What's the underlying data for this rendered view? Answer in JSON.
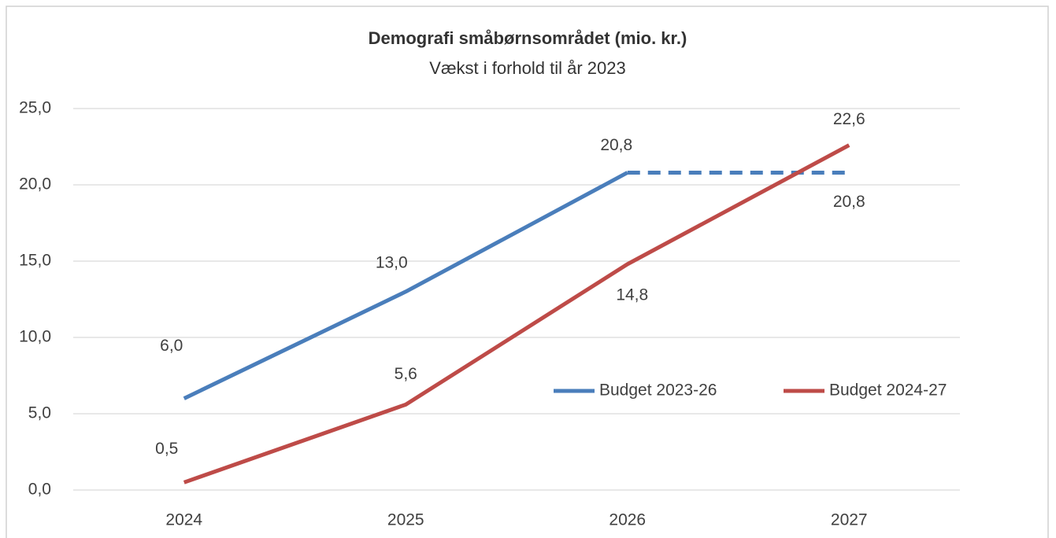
{
  "chart_data": {
    "type": "line",
    "title": "Demografi småbørnsområdet (mio. kr.)",
    "subtitle": "Vækst i forhold til år 2023",
    "categories": [
      "2024",
      "2025",
      "2026",
      "2027"
    ],
    "series": [
      {
        "name": "Budget 2023-26",
        "color": "#4a7ebb",
        "values": [
          6.0,
          13.0,
          20.8,
          20.8
        ],
        "value_labels": [
          "6,0",
          "13,0",
          "20,8",
          "20,8"
        ],
        "dashed_from": 2
      },
      {
        "name": "Budget 2024-27",
        "color": "#be4b48",
        "values": [
          0.5,
          5.6,
          14.8,
          22.6
        ],
        "value_labels": [
          "0,5",
          "5,6",
          "14,8",
          "22,6"
        ]
      }
    ],
    "ylim": [
      0,
      25
    ],
    "yticks": [
      {
        "value": 0,
        "label": "0,0"
      },
      {
        "value": 5,
        "label": "5,0"
      },
      {
        "value": 10,
        "label": "10,0"
      },
      {
        "value": 15,
        "label": "15,0"
      },
      {
        "value": 20,
        "label": "20,0"
      },
      {
        "value": 25,
        "label": "25,0"
      }
    ],
    "grid": true,
    "legend": "center right"
  }
}
